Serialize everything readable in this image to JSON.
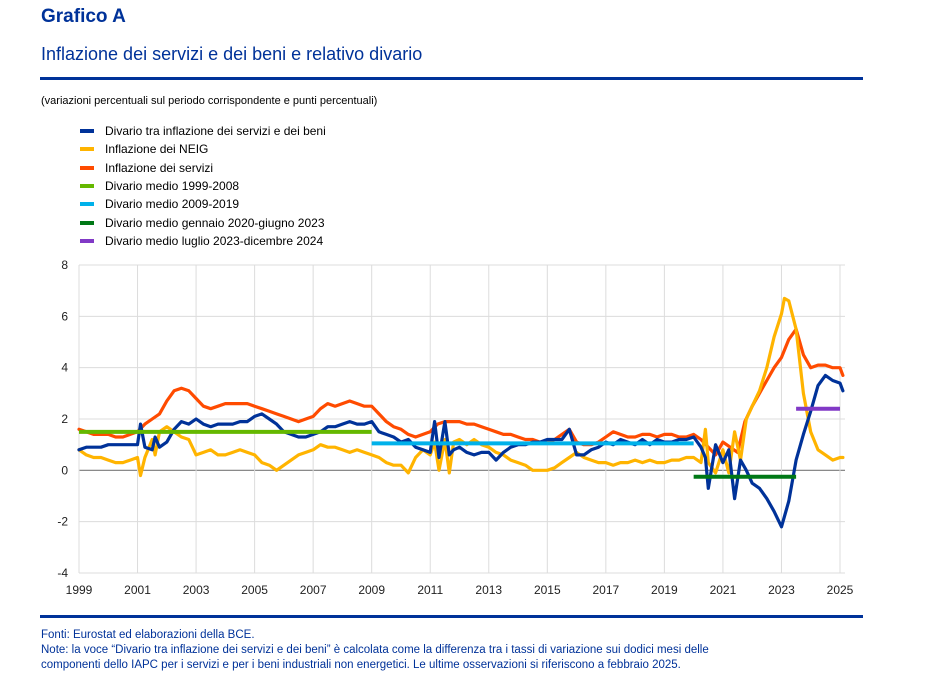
{
  "header": {
    "title": "Grafico A",
    "subtitle": "Inflazione dei servizi e dei beni e relativo divario",
    "units": "(variazioni percentuali sul periodo corrispondente e punti percentuali)"
  },
  "legend": [
    {
      "label": "Divario tra inflazione dei servizi e dei beni",
      "color": "#003299"
    },
    {
      "label": "Inflazione dei NEIG",
      "color": "#FFB400"
    },
    {
      "label": "Inflazione dei servizi",
      "color": "#FF4B00"
    },
    {
      "label": "Divario medio 1999-2008",
      "color": "#65B800"
    },
    {
      "label": "Divario medio 2009-2019",
      "color": "#00B1EA"
    },
    {
      "label": "Divario medio gennaio 2020-giugno 2023",
      "color": "#007816"
    },
    {
      "label": "Divario medio luglio 2023-dicembre 2024",
      "color": "#8139C6"
    }
  ],
  "footer": {
    "sources": "Fonti: Eurostat ed elaborazioni della BCE.",
    "notes_line1": "Note: la voce “Divario tra inflazione dei servizi e dei beni” è calcolata come la differenza tra i tassi di variazione sui dodici mesi delle",
    "notes_line2": "componenti dello IAPC per i servizi e per i beni industriali non energetici. Le ultime osservazioni si riferiscono a febbraio 2025."
  },
  "chart_data": {
    "type": "line",
    "title": "Inflazione dei servizi e dei beni e relativo divario",
    "xlabel": "",
    "ylabel": "",
    "xlim": [
      1999,
      2025.2
    ],
    "ylim": [
      -4,
      8
    ],
    "x_ticks": [
      "1999",
      "2001",
      "2003",
      "2005",
      "2007",
      "2009",
      "2011",
      "2013",
      "2015",
      "2017",
      "2019",
      "2021",
      "2023",
      "2025"
    ],
    "x_tick_values": [
      1999,
      2001,
      2003,
      2005,
      2007,
      2009,
      2011,
      2013,
      2015,
      2017,
      2019,
      2021,
      2023,
      2025
    ],
    "y_ticks": [
      "-4",
      "-2",
      "0",
      "2",
      "4",
      "6",
      "8"
    ],
    "y_tick_values": [
      -4,
      -2,
      0,
      2,
      4,
      6,
      8
    ],
    "grid": true,
    "legend_position": "top-left",
    "series": [
      {
        "name": "Inflazione dei servizi",
        "color": "#FF4B00",
        "x": [
          1999,
          1999.25,
          1999.5,
          1999.75,
          2000,
          2000.25,
          2000.5,
          2000.75,
          2001,
          2001.25,
          2001.5,
          2001.75,
          2002,
          2002.25,
          2002.5,
          2002.75,
          2003,
          2003.25,
          2003.5,
          2003.75,
          2004,
          2004.25,
          2004.5,
          2004.75,
          2005,
          2005.25,
          2005.5,
          2005.75,
          2006,
          2006.25,
          2006.5,
          2006.75,
          2007,
          2007.25,
          2007.5,
          2007.75,
          2008,
          2008.25,
          2008.5,
          2008.75,
          2009,
          2009.25,
          2009.5,
          2009.75,
          2010,
          2010.25,
          2010.5,
          2010.75,
          2011,
          2011.25,
          2011.5,
          2011.75,
          2012,
          2012.25,
          2012.5,
          2012.75,
          2013,
          2013.25,
          2013.5,
          2013.75,
          2014,
          2014.25,
          2014.5,
          2014.75,
          2015,
          2015.25,
          2015.5,
          2015.75,
          2016,
          2016.25,
          2016.5,
          2016.75,
          2017,
          2017.25,
          2017.5,
          2017.75,
          2018,
          2018.25,
          2018.5,
          2018.75,
          2019,
          2019.25,
          2019.5,
          2019.75,
          2020,
          2020.25,
          2020.5,
          2020.75,
          2021,
          2021.25,
          2021.5,
          2021.75,
          2022,
          2022.25,
          2022.5,
          2022.75,
          2023,
          2023.25,
          2023.5,
          2023.75,
          2024,
          2024.25,
          2024.5,
          2024.75,
          2025,
          2025.1
        ],
        "y": [
          1.6,
          1.5,
          1.4,
          1.4,
          1.4,
          1.3,
          1.3,
          1.4,
          1.5,
          1.8,
          2.0,
          2.2,
          2.7,
          3.1,
          3.2,
          3.1,
          2.8,
          2.5,
          2.4,
          2.5,
          2.6,
          2.6,
          2.6,
          2.6,
          2.5,
          2.4,
          2.3,
          2.2,
          2.1,
          2.0,
          1.9,
          2.0,
          2.1,
          2.4,
          2.6,
          2.5,
          2.6,
          2.7,
          2.6,
          2.5,
          2.5,
          2.2,
          1.9,
          1.7,
          1.6,
          1.4,
          1.3,
          1.4,
          1.5,
          1.8,
          1.9,
          1.9,
          1.9,
          1.8,
          1.8,
          1.7,
          1.6,
          1.5,
          1.4,
          1.4,
          1.3,
          1.2,
          1.2,
          1.1,
          1.1,
          1.2,
          1.4,
          1.6,
          1.1,
          1.0,
          1.0,
          1.1,
          1.3,
          1.5,
          1.4,
          1.3,
          1.3,
          1.4,
          1.4,
          1.3,
          1.4,
          1.4,
          1.3,
          1.3,
          1.4,
          1.2,
          0.9,
          0.6,
          1.1,
          0.9,
          0.7,
          1.9,
          2.5,
          3.0,
          3.5,
          4.0,
          4.4,
          5.1,
          5.5,
          4.5,
          4.0,
          4.1,
          4.1,
          4.0,
          4.0,
          3.7
        ]
      },
      {
        "name": "Inflazione dei NEIG",
        "color": "#FFB400",
        "x": [
          1999,
          1999.25,
          1999.5,
          1999.75,
          2000,
          2000.25,
          2000.5,
          2000.75,
          2001,
          2001.1,
          2001.25,
          2001.5,
          2001.6,
          2001.75,
          2002,
          2002.25,
          2002.5,
          2002.75,
          2003,
          2003.25,
          2003.5,
          2003.75,
          2004,
          2004.25,
          2004.5,
          2004.75,
          2005,
          2005.25,
          2005.5,
          2005.75,
          2006,
          2006.25,
          2006.5,
          2006.75,
          2007,
          2007.25,
          2007.5,
          2007.75,
          2008,
          2008.25,
          2008.5,
          2008.75,
          2009,
          2009.25,
          2009.5,
          2009.75,
          2010,
          2010.25,
          2010.5,
          2010.75,
          2011,
          2011.15,
          2011.3,
          2011.5,
          2011.65,
          2011.8,
          2012,
          2012.25,
          2012.5,
          2012.75,
          2013,
          2013.25,
          2013.5,
          2013.75,
          2014,
          2014.25,
          2014.5,
          2014.75,
          2015,
          2015.25,
          2015.5,
          2015.75,
          2016,
          2016.25,
          2016.5,
          2016.75,
          2017,
          2017.25,
          2017.5,
          2017.75,
          2018,
          2018.25,
          2018.5,
          2018.75,
          2019,
          2019.25,
          2019.5,
          2019.75,
          2020,
          2020.25,
          2020.4,
          2020.5,
          2020.75,
          2021,
          2021.2,
          2021.4,
          2021.6,
          2021.8,
          2022,
          2022.25,
          2022.5,
          2022.75,
          2023,
          2023.1,
          2023.25,
          2023.5,
          2023.75,
          2024,
          2024.25,
          2024.5,
          2024.75,
          2025,
          2025.1
        ],
        "y": [
          0.8,
          0.6,
          0.5,
          0.5,
          0.4,
          0.3,
          0.3,
          0.4,
          0.5,
          -0.2,
          0.5,
          1.2,
          0.6,
          1.5,
          1.7,
          1.5,
          1.3,
          1.2,
          0.6,
          0.7,
          0.8,
          0.6,
          0.6,
          0.7,
          0.8,
          0.7,
          0.6,
          0.3,
          0.2,
          0.0,
          0.2,
          0.4,
          0.6,
          0.7,
          0.8,
          1.0,
          0.9,
          0.9,
          0.8,
          0.7,
          0.8,
          0.7,
          0.6,
          0.5,
          0.3,
          0.2,
          0.2,
          -0.1,
          0.5,
          0.8,
          0.6,
          1.1,
          0.0,
          1.2,
          -0.1,
          1.1,
          1.2,
          1.0,
          1.2,
          1.0,
          0.9,
          0.7,
          0.6,
          0.4,
          0.3,
          0.2,
          0.0,
          0.0,
          0.0,
          0.1,
          0.3,
          0.5,
          0.7,
          0.5,
          0.4,
          0.3,
          0.3,
          0.2,
          0.3,
          0.3,
          0.4,
          0.3,
          0.4,
          0.3,
          0.3,
          0.4,
          0.4,
          0.5,
          0.5,
          0.3,
          1.6,
          0.3,
          -0.1,
          0.8,
          -0.1,
          1.5,
          0.4,
          2.0,
          2.5,
          3.1,
          4.0,
          5.2,
          6.1,
          6.7,
          6.6,
          5.5,
          3.0,
          1.5,
          0.8,
          0.6,
          0.4,
          0.5,
          0.5
        ]
      },
      {
        "name": "Divario tra inflazione dei servizi e dei beni",
        "color": "#003299",
        "x": [
          1999,
          1999.25,
          1999.5,
          1999.75,
          2000,
          2000.25,
          2000.5,
          2000.75,
          2001,
          2001.1,
          2001.25,
          2001.5,
          2001.6,
          2001.75,
          2002,
          2002.25,
          2002.5,
          2002.75,
          2003,
          2003.25,
          2003.5,
          2003.75,
          2004,
          2004.25,
          2004.5,
          2004.75,
          2005,
          2005.25,
          2005.5,
          2005.75,
          2006,
          2006.25,
          2006.5,
          2006.75,
          2007,
          2007.25,
          2007.5,
          2007.75,
          2008,
          2008.25,
          2008.5,
          2008.75,
          2009,
          2009.25,
          2009.5,
          2009.75,
          2010,
          2010.25,
          2010.5,
          2010.75,
          2011,
          2011.15,
          2011.3,
          2011.5,
          2011.65,
          2011.8,
          2012,
          2012.25,
          2012.5,
          2012.75,
          2013,
          2013.25,
          2013.5,
          2013.75,
          2014,
          2014.25,
          2014.5,
          2014.75,
          2015,
          2015.25,
          2015.5,
          2015.75,
          2016,
          2016.25,
          2016.5,
          2016.75,
          2017,
          2017.25,
          2017.5,
          2017.75,
          2018,
          2018.25,
          2018.5,
          2018.75,
          2019,
          2019.25,
          2019.5,
          2019.75,
          2020,
          2020.25,
          2020.4,
          2020.5,
          2020.75,
          2021,
          2021.2,
          2021.4,
          2021.6,
          2021.8,
          2022,
          2022.25,
          2022.5,
          2022.75,
          2023,
          2023.25,
          2023.5,
          2023.75,
          2024,
          2024.25,
          2024.5,
          2024.75,
          2025,
          2025.1
        ],
        "y": [
          0.8,
          0.9,
          0.9,
          0.9,
          1.0,
          1.0,
          1.0,
          1.0,
          1.0,
          1.8,
          0.9,
          0.8,
          1.3,
          0.9,
          1.1,
          1.6,
          1.9,
          1.8,
          2.0,
          1.8,
          1.7,
          1.8,
          1.8,
          1.8,
          1.9,
          1.9,
          2.1,
          2.2,
          2.0,
          1.8,
          1.5,
          1.4,
          1.3,
          1.3,
          1.4,
          1.5,
          1.7,
          1.7,
          1.8,
          1.9,
          1.8,
          1.8,
          1.9,
          1.5,
          1.4,
          1.3,
          1.1,
          1.2,
          0.9,
          0.8,
          0.7,
          1.9,
          0.5,
          1.9,
          0.6,
          0.8,
          0.9,
          0.7,
          0.6,
          0.7,
          0.7,
          0.4,
          0.7,
          0.9,
          1.0,
          1.0,
          1.1,
          1.1,
          1.2,
          1.2,
          1.2,
          1.6,
          0.6,
          0.6,
          0.8,
          0.9,
          1.1,
          1.0,
          1.2,
          1.1,
          1.0,
          1.2,
          1.0,
          1.2,
          1.1,
          1.1,
          1.2,
          1.2,
          1.3,
          0.9,
          0.5,
          -0.7,
          1.0,
          0.3,
          0.8,
          -1.1,
          0.4,
          0.0,
          -0.5,
          -0.7,
          -1.1,
          -1.6,
          -2.2,
          -1.2,
          0.4,
          1.4,
          2.3,
          3.3,
          3.7,
          3.5,
          3.4,
          3.1
        ]
      }
    ],
    "mean_lines": [
      {
        "name": "Divario medio 1999-2008",
        "color": "#65B800",
        "x_start": 1999,
        "x_end": 2009,
        "value": 1.5
      },
      {
        "name": "Divario medio 2009-2019",
        "color": "#00B1EA",
        "x_start": 2009,
        "x_end": 2020,
        "value": 1.05
      },
      {
        "name": "Divario medio gennaio 2020-giugno 2023",
        "color": "#007816",
        "x_start": 2020,
        "x_end": 2023.5,
        "value": -0.25
      },
      {
        "name": "Divario medio luglio 2023-dicembre 2024",
        "color": "#8139C6",
        "x_start": 2023.5,
        "x_end": 2025,
        "value": 2.4
      }
    ]
  }
}
